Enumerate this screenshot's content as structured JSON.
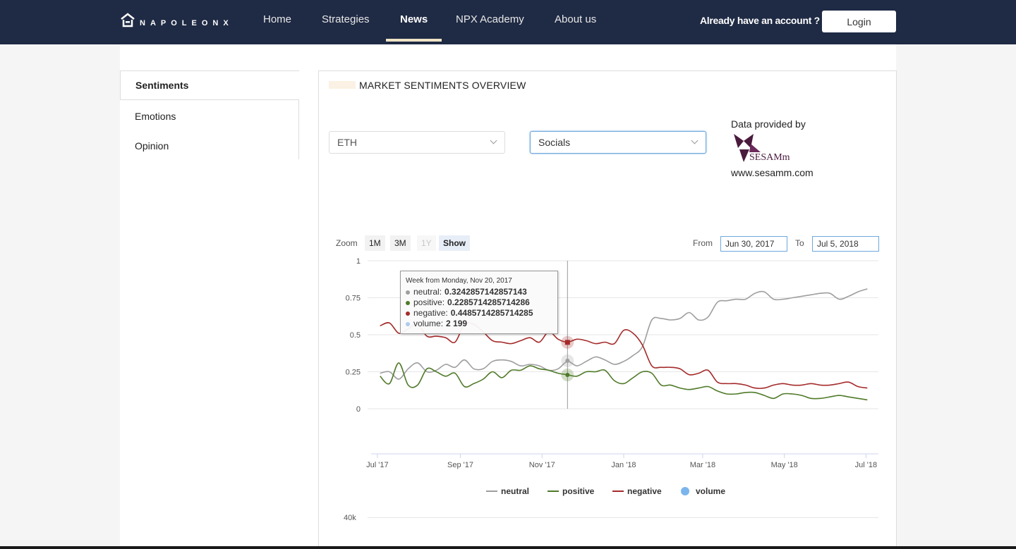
{
  "app": {
    "logo_text": "NAPOLEONX"
  },
  "nav": {
    "items": [
      {
        "label": "Home"
      },
      {
        "label": "Strategies"
      },
      {
        "label": "News"
      },
      {
        "label": "NPX Academy"
      },
      {
        "label": "About us"
      }
    ],
    "active": "News",
    "account_text": "Already have an account ?",
    "login_label": "Login"
  },
  "sidebar": {
    "items": [
      {
        "label": "Sentiments"
      },
      {
        "label": "Emotions"
      },
      {
        "label": "Opinion"
      }
    ],
    "active": "Sentiments"
  },
  "panel": {
    "title": "MARKET SENTIMENTS OVERVIEW",
    "asset_select": "ETH",
    "source_select": "Socials",
    "provider_label": "Data provided by",
    "provider_name": "SESAMm",
    "provider_url": "www.sesamm.com"
  },
  "chart_controls": {
    "zoom_label": "Zoom",
    "zoom_buttons": [
      "1M",
      "3M",
      "1Y",
      "Show"
    ],
    "from_label": "From",
    "from_value": "Jun 30, 2017",
    "to_label": "To",
    "to_value": "Jul 5, 2018"
  },
  "tooltip": {
    "header": "Week from Monday, Nov 20, 2017",
    "rows": [
      {
        "name": "neutral",
        "value": "0.3242857142857143"
      },
      {
        "name": "positive",
        "value": "0.2285714285714286"
      },
      {
        "name": "negative",
        "value": "0.4485714285714285"
      },
      {
        "name": "volume",
        "value": "2 199"
      }
    ]
  },
  "volume_axis": {
    "top_tick": "40k"
  },
  "colors": {
    "topbar": "#1f2a44",
    "neutral": "#9e9e9e",
    "positive": "#4f7a28",
    "negative": "#a52a2a",
    "volume": "#7cb5ec",
    "accent_underline": "#efe3c6"
  },
  "chart_data": {
    "type": "line",
    "ylim": [
      0,
      1
    ],
    "yticks": [
      "0",
      "0.25",
      "0.5",
      "0.75",
      "1"
    ],
    "xlim": [
      "2017-06-30",
      "2018-07-05"
    ],
    "xticks": [
      {
        "label": "Jul '17",
        "date": "2017-07-01"
      },
      {
        "label": "Sep '17",
        "date": "2017-09-01"
      },
      {
        "label": "Nov '17",
        "date": "2017-11-01"
      },
      {
        "label": "Jan '18",
        "date": "2018-01-01"
      },
      {
        "label": "Mar '18",
        "date": "2018-03-01"
      },
      {
        "label": "May '18",
        "date": "2018-05-01"
      },
      {
        "label": "Jul '18",
        "date": "2018-07-01"
      }
    ],
    "x": [
      "2017-07-03",
      "2017-07-10",
      "2017-07-17",
      "2017-07-24",
      "2017-07-31",
      "2017-08-07",
      "2017-08-14",
      "2017-08-21",
      "2017-08-28",
      "2017-09-04",
      "2017-09-11",
      "2017-09-18",
      "2017-09-25",
      "2017-10-02",
      "2017-10-09",
      "2017-10-16",
      "2017-10-23",
      "2017-10-30",
      "2017-11-06",
      "2017-11-13",
      "2017-11-20",
      "2017-11-27",
      "2017-12-04",
      "2017-12-11",
      "2017-12-18",
      "2017-12-25",
      "2018-01-01",
      "2018-01-08",
      "2018-01-15",
      "2018-01-22",
      "2018-01-29",
      "2018-02-05",
      "2018-02-12",
      "2018-02-19",
      "2018-02-26",
      "2018-03-05",
      "2018-03-12",
      "2018-03-19",
      "2018-03-26",
      "2018-04-02",
      "2018-04-09",
      "2018-04-16",
      "2018-04-23",
      "2018-04-30",
      "2018-05-07",
      "2018-05-14",
      "2018-05-21",
      "2018-05-28",
      "2018-06-04",
      "2018-06-11",
      "2018-06-18",
      "2018-06-25",
      "2018-07-02"
    ],
    "series": [
      {
        "name": "neutral",
        "values": [
          0.24,
          0.25,
          0.2,
          0.27,
          0.31,
          0.25,
          0.26,
          0.3,
          0.28,
          0.33,
          0.27,
          0.27,
          0.32,
          0.33,
          0.32,
          0.29,
          0.3,
          0.29,
          0.26,
          0.27,
          0.32,
          0.29,
          0.32,
          0.35,
          0.33,
          0.3,
          0.32,
          0.36,
          0.42,
          0.6,
          0.61,
          0.6,
          0.61,
          0.65,
          0.6,
          0.62,
          0.72,
          0.73,
          0.74,
          0.74,
          0.78,
          0.79,
          0.74,
          0.74,
          0.75,
          0.76,
          0.77,
          0.78,
          0.78,
          0.74,
          0.76,
          0.79,
          0.81
        ]
      },
      {
        "name": "positive",
        "values": [
          0.22,
          0.17,
          0.31,
          0.16,
          0.16,
          0.27,
          0.25,
          0.22,
          0.24,
          0.15,
          0.17,
          0.2,
          0.25,
          0.21,
          0.26,
          0.26,
          0.29,
          0.27,
          0.26,
          0.24,
          0.23,
          0.22,
          0.25,
          0.25,
          0.26,
          0.19,
          0.17,
          0.21,
          0.25,
          0.24,
          0.16,
          0.16,
          0.14,
          0.13,
          0.14,
          0.15,
          0.12,
          0.1,
          0.1,
          0.11,
          0.11,
          0.09,
          0.07,
          0.1,
          0.1,
          0.09,
          0.07,
          0.07,
          0.08,
          0.09,
          0.08,
          0.07,
          0.06
        ]
      },
      {
        "name": "negative",
        "values": [
          0.56,
          0.58,
          0.51,
          0.54,
          0.57,
          0.49,
          0.49,
          0.48,
          0.45,
          0.57,
          0.57,
          0.52,
          0.46,
          0.45,
          0.44,
          0.46,
          0.48,
          0.45,
          0.52,
          0.47,
          0.45,
          0.47,
          0.46,
          0.44,
          0.45,
          0.44,
          0.53,
          0.51,
          0.43,
          0.29,
          0.28,
          0.28,
          0.27,
          0.23,
          0.24,
          0.26,
          0.18,
          0.17,
          0.17,
          0.16,
          0.14,
          0.14,
          0.16,
          0.17,
          0.16,
          0.16,
          0.17,
          0.16,
          0.16,
          0.17,
          0.18,
          0.15,
          0.14
        ]
      }
    ],
    "highlight": {
      "date": "2017-11-20",
      "neutral": 0.3242857142857143,
      "positive": 0.2285714285714286,
      "negative": 0.4485714285714285,
      "volume": 2199
    },
    "legend": [
      "neutral",
      "positive",
      "negative",
      "volume"
    ],
    "legend_placement": "bottom-center",
    "grid": true
  }
}
